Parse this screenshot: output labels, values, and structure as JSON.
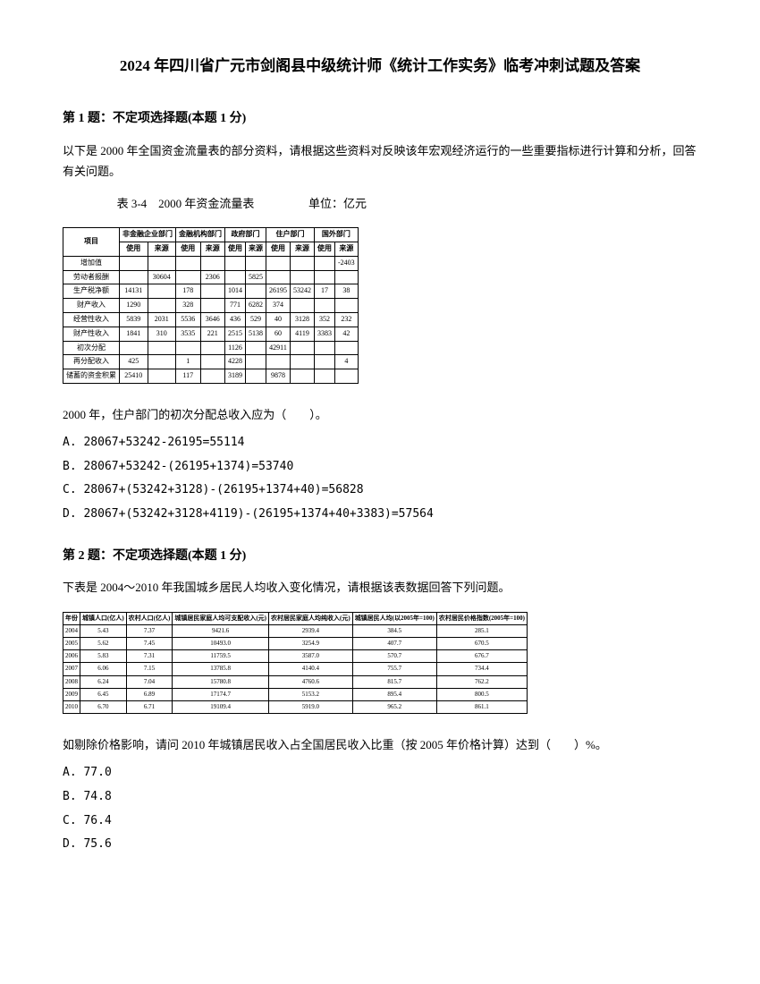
{
  "title": "2024 年四川省广元市剑阁县中级统计师《统计工作实务》临考冲刺试题及答案",
  "q1": {
    "header": "第 1 题：不定项选择题(本题 1 分)",
    "text": "以下是 2000 年全国资金流量表的部分资料，请根据这些资料对反映该年宏观经济运行的一些重要指标进行计算和分析，回答有关问题。",
    "tableCaption": "表 3-4　2000 年资金流量表",
    "tableUnit": "单位：亿元",
    "tableHeaders1": [
      "项目",
      "非金融企业部门",
      "金融机构部门",
      "政府部门",
      "住户部门",
      "国外部门"
    ],
    "tableHeaders2": [
      "",
      "使用",
      "来源",
      "使用",
      "来源",
      "使用",
      "来源",
      "使用",
      "来源",
      "使用",
      "来源"
    ],
    "tableRows": [
      [
        "增加值",
        "",
        "",
        "",
        "",
        "",
        "",
        "",
        "",
        "",
        "-2403"
      ],
      [
        "劳动者报酬",
        "",
        "30604",
        "",
        "2306",
        "",
        "5825",
        "",
        "",
        "",
        ""
      ],
      [
        "生产税净额",
        "14131",
        "",
        "178",
        "",
        "1014",
        "",
        "26195",
        "53242",
        "17",
        "38"
      ],
      [
        "财产收入",
        "1290",
        "",
        "328",
        "",
        "771",
        "6282",
        "374",
        "",
        "",
        ""
      ],
      [
        "经营性收入",
        "5839",
        "2031",
        "5536",
        "3646",
        "436",
        "529",
        "40",
        "3128",
        "352",
        "232"
      ],
      [
        "财产性收入",
        "1841",
        "310",
        "3535",
        "221",
        "2515",
        "5138",
        "60",
        "4119",
        "3383",
        "42"
      ],
      [
        "初次分配",
        "",
        "",
        "",
        "",
        "1126",
        "",
        "42911",
        "",
        "",
        ""
      ],
      [
        "再分配收入",
        "425",
        "",
        "1",
        "",
        "4228",
        "",
        "",
        "",
        "",
        "4"
      ],
      [
        "储蓄的资金积累",
        "25410",
        "",
        "117",
        "",
        "3189",
        "",
        "9878",
        "",
        "",
        ""
      ]
    ],
    "subQuestion": "2000 年，住户部门的初次分配总收入应为（　　）。",
    "options": [
      "A. 28067+53242-26195=55114",
      "B. 28067+53242-(26195+1374)=53740",
      "C. 28067+(53242+3128)-(26195+1374+40)=56828",
      "D. 28067+(53242+3128+4119)-(26195+1374+40+3383)=57564"
    ]
  },
  "q2": {
    "header": "第 2 题：不定项选择题(本题 1 分)",
    "text": "下表是 2004～2010 年我国城乡居民人均收入变化情况，请根据该表数据回答下列问题。",
    "tableHeaders": [
      "年份",
      "城镇人口(亿人)",
      "农村人口(亿人)",
      "城镇居民家庭人均可支配收入(元)",
      "农村居民家庭人均纯收入(元)",
      "城镇居民人均(以2005年=100)",
      "农村居民价格指数(2005年=100)"
    ],
    "tableRows": [
      [
        "2004",
        "5.43",
        "7.37",
        "9421.6",
        "2939.4",
        "384.5",
        "285.1"
      ],
      [
        "2005",
        "5.62",
        "7.45",
        "10493.0",
        "3254.9",
        "407.7",
        "670.5"
      ],
      [
        "2006",
        "5.83",
        "7.31",
        "11759.5",
        "3587.0",
        "570.7",
        "676.7"
      ],
      [
        "2007",
        "6.06",
        "7.15",
        "13785.8",
        "4140.4",
        "755.7",
        "734.4"
      ],
      [
        "2008",
        "6.24",
        "7.04",
        "15780.8",
        "4760.6",
        "815.7",
        "762.2"
      ],
      [
        "2009",
        "6.45",
        "6.89",
        "17174.7",
        "5153.2",
        "895.4",
        "800.5"
      ],
      [
        "2010",
        "6.70",
        "6.71",
        "19109.4",
        "5919.0",
        "965.2",
        "861.1"
      ]
    ],
    "subQuestion": "如剔除价格影响，请问 2010 年城镇居民收入占全国居民收入比重（按 2005 年价格计算）达到（　　）%。",
    "options": [
      "A. 77.0",
      "B. 74.8",
      "C. 76.4",
      "D. 75.6"
    ]
  }
}
